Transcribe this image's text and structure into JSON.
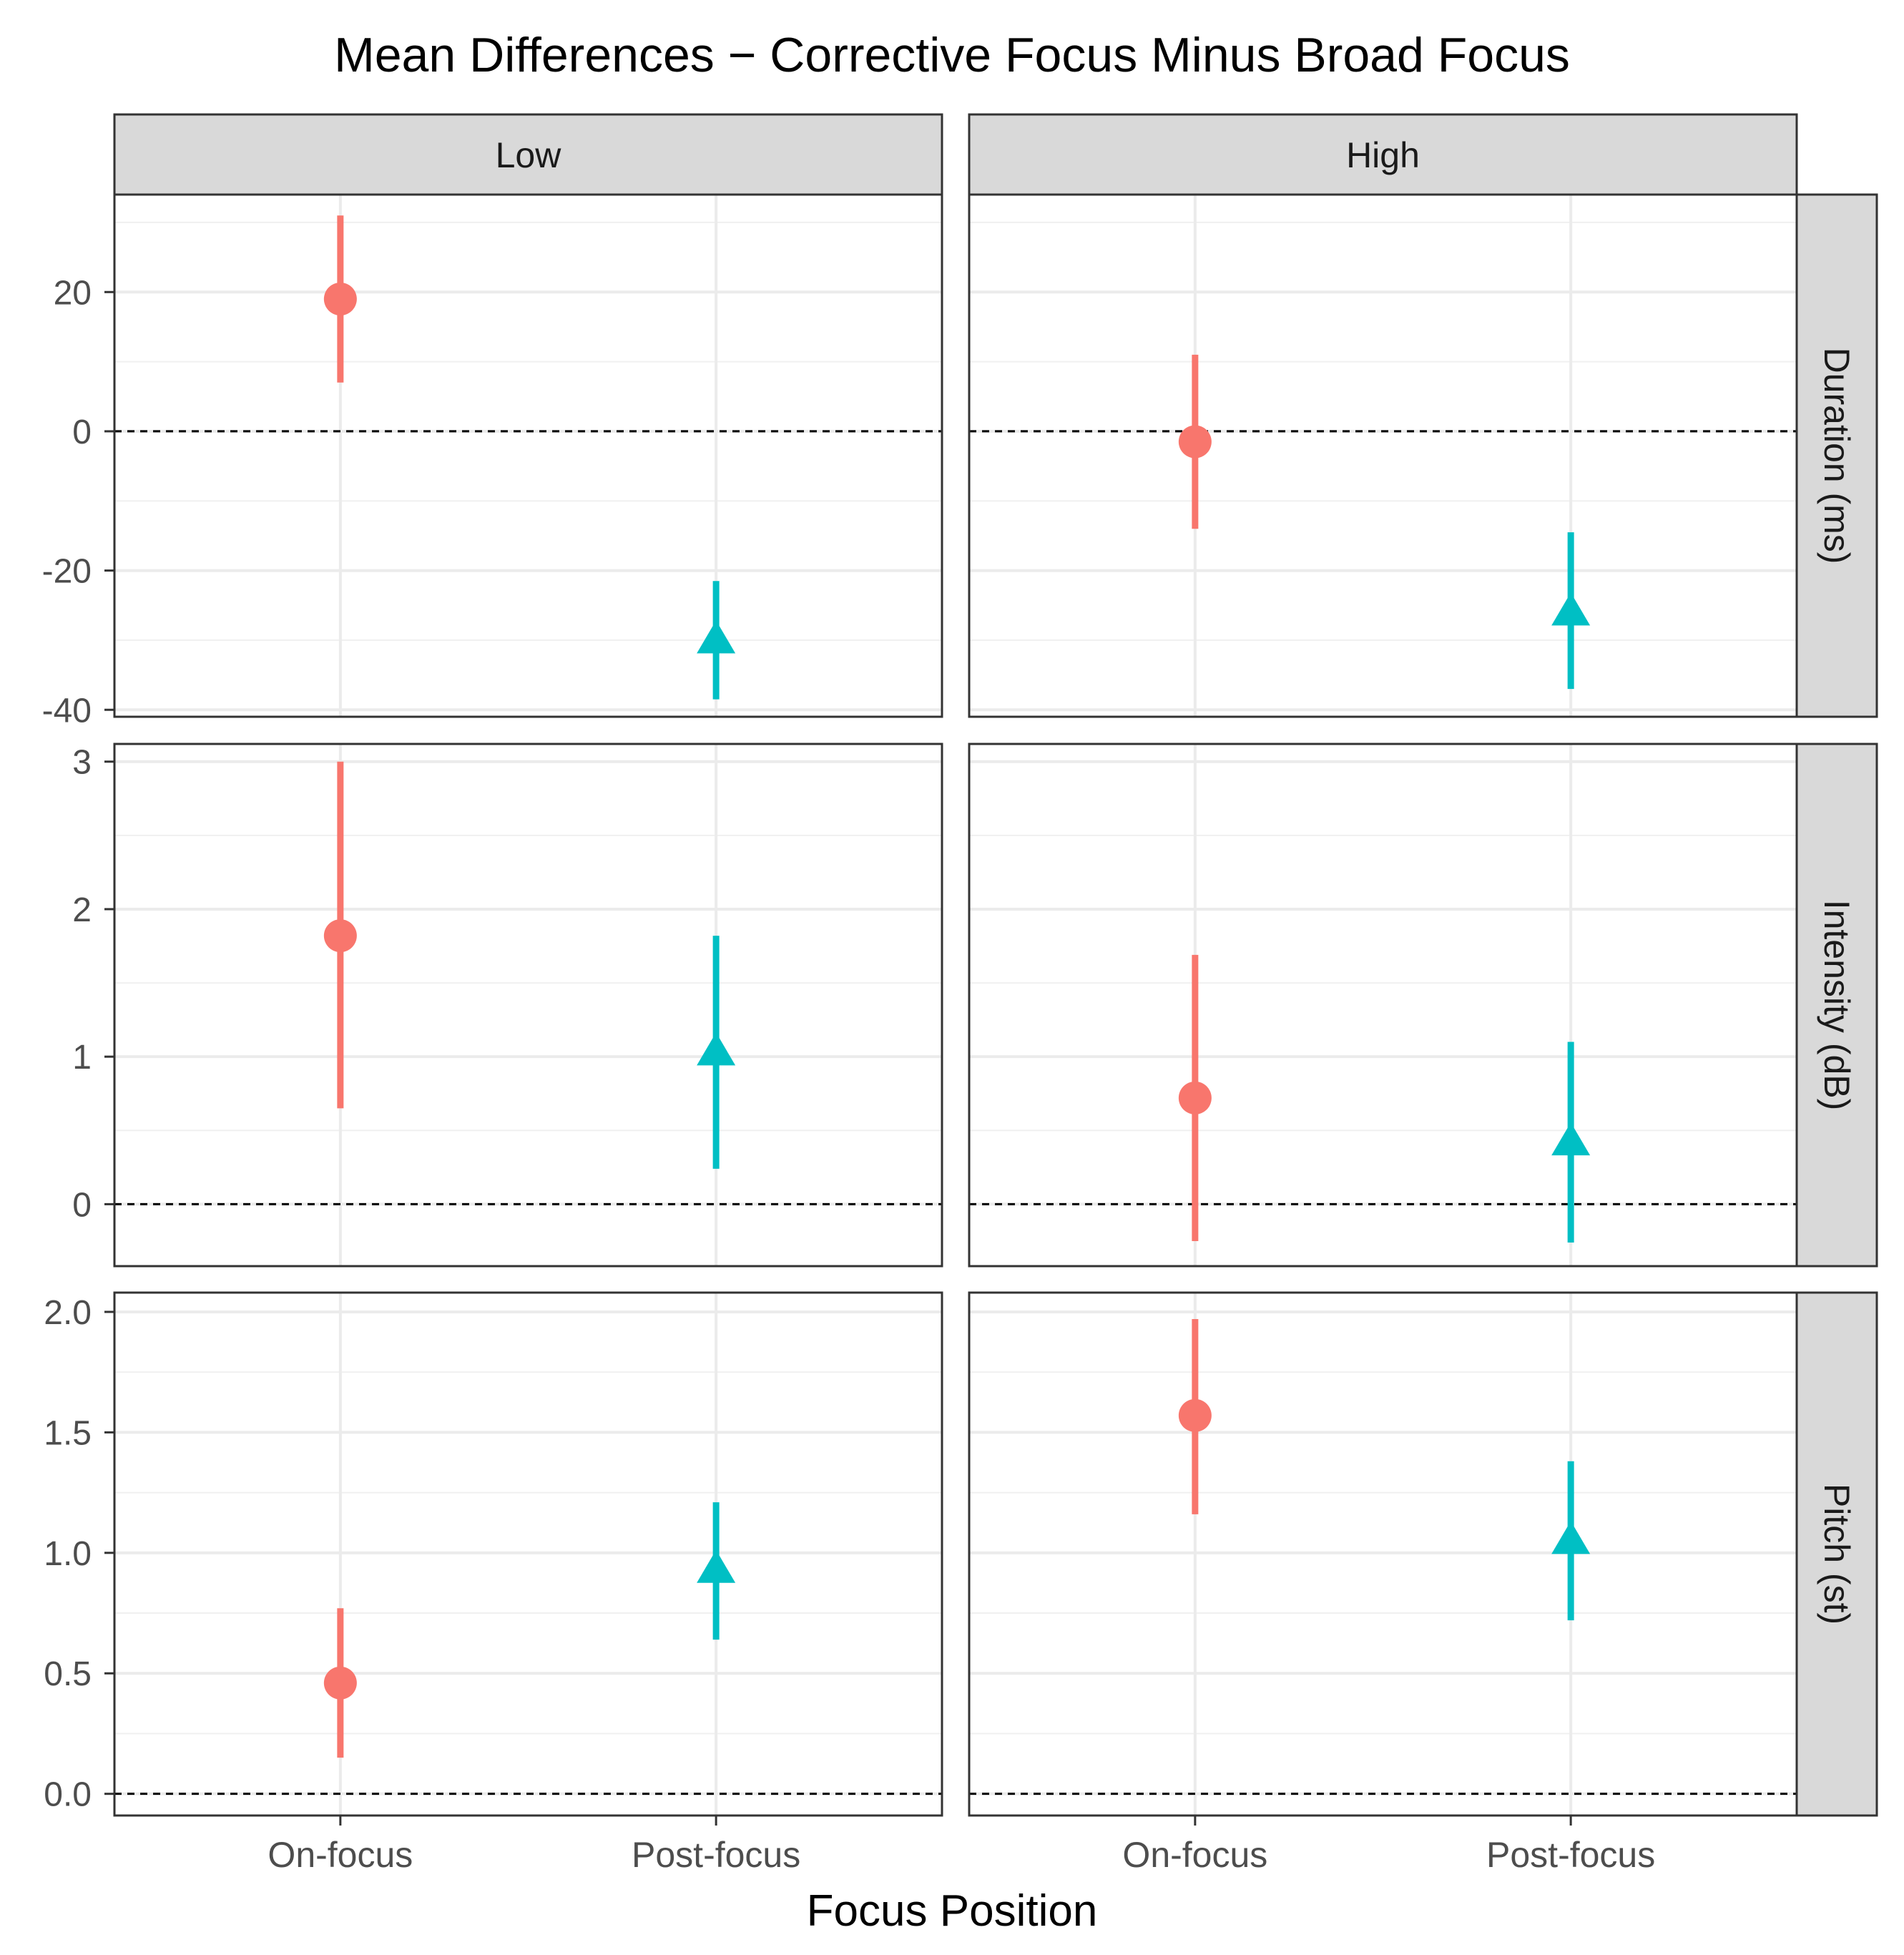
{
  "chart_data": {
    "type": "faceted-pointrange",
    "title": "Mean Differences − Corrective Focus Minus Broad Focus",
    "xlabel": "Focus Position",
    "categories": [
      "On-focus",
      "Post-focus"
    ],
    "column_facets": [
      "Low",
      "High"
    ],
    "row_facets": [
      {
        "label": "Duration (ms)",
        "ylim": [
          -41,
          34
        ],
        "ticks": [
          20,
          0,
          -20,
          -40
        ],
        "tick_labels": [
          "20",
          "0",
          "-20",
          "-40"
        ]
      },
      {
        "label": "Intensity (dB)",
        "ylim": [
          -0.42,
          3.12
        ],
        "ticks": [
          3,
          2,
          1,
          0
        ],
        "tick_labels": [
          "3",
          "2",
          "1",
          "0"
        ]
      },
      {
        "label": "Pitch (st)",
        "ylim": [
          -0.09,
          2.08
        ],
        "ticks": [
          2.0,
          1.5,
          1.0,
          0.5,
          0.0
        ],
        "tick_labels": [
          "2.0",
          "1.5",
          "1.0",
          "0.5",
          "0.0"
        ]
      }
    ],
    "reference_line": 0,
    "series": [
      {
        "name": "On-focus",
        "shape": "circle",
        "color": "#F8766D"
      },
      {
        "name": "Post-focus",
        "shape": "triangle",
        "color": "#00BFC4"
      }
    ],
    "points": [
      {
        "row": 0,
        "col": 0,
        "x": "On-focus",
        "y": 19,
        "lower": 7,
        "upper": 31
      },
      {
        "row": 0,
        "col": 0,
        "x": "Post-focus",
        "y": -30,
        "lower": -38.5,
        "upper": -21.5
      },
      {
        "row": 0,
        "col": 1,
        "x": "On-focus",
        "y": -1.5,
        "lower": -14,
        "upper": 11
      },
      {
        "row": 0,
        "col": 1,
        "x": "Post-focus",
        "y": -26,
        "lower": -37,
        "upper": -14.5
      },
      {
        "row": 1,
        "col": 0,
        "x": "On-focus",
        "y": 1.82,
        "lower": 0.65,
        "upper": 3.0
      },
      {
        "row": 1,
        "col": 0,
        "x": "Post-focus",
        "y": 1.03,
        "lower": 0.24,
        "upper": 1.82
      },
      {
        "row": 1,
        "col": 1,
        "x": "On-focus",
        "y": 0.72,
        "lower": -0.25,
        "upper": 1.69
      },
      {
        "row": 1,
        "col": 1,
        "x": "Post-focus",
        "y": 0.42,
        "lower": -0.26,
        "upper": 1.1
      },
      {
        "row": 2,
        "col": 0,
        "x": "On-focus",
        "y": 0.46,
        "lower": 0.15,
        "upper": 0.77
      },
      {
        "row": 2,
        "col": 0,
        "x": "Post-focus",
        "y": 0.93,
        "lower": 0.64,
        "upper": 1.21
      },
      {
        "row": 2,
        "col": 1,
        "x": "On-focus",
        "y": 1.57,
        "lower": 1.16,
        "upper": 1.97
      },
      {
        "row": 2,
        "col": 1,
        "x": "Post-focus",
        "y": 1.05,
        "lower": 0.72,
        "upper": 1.38
      }
    ]
  }
}
